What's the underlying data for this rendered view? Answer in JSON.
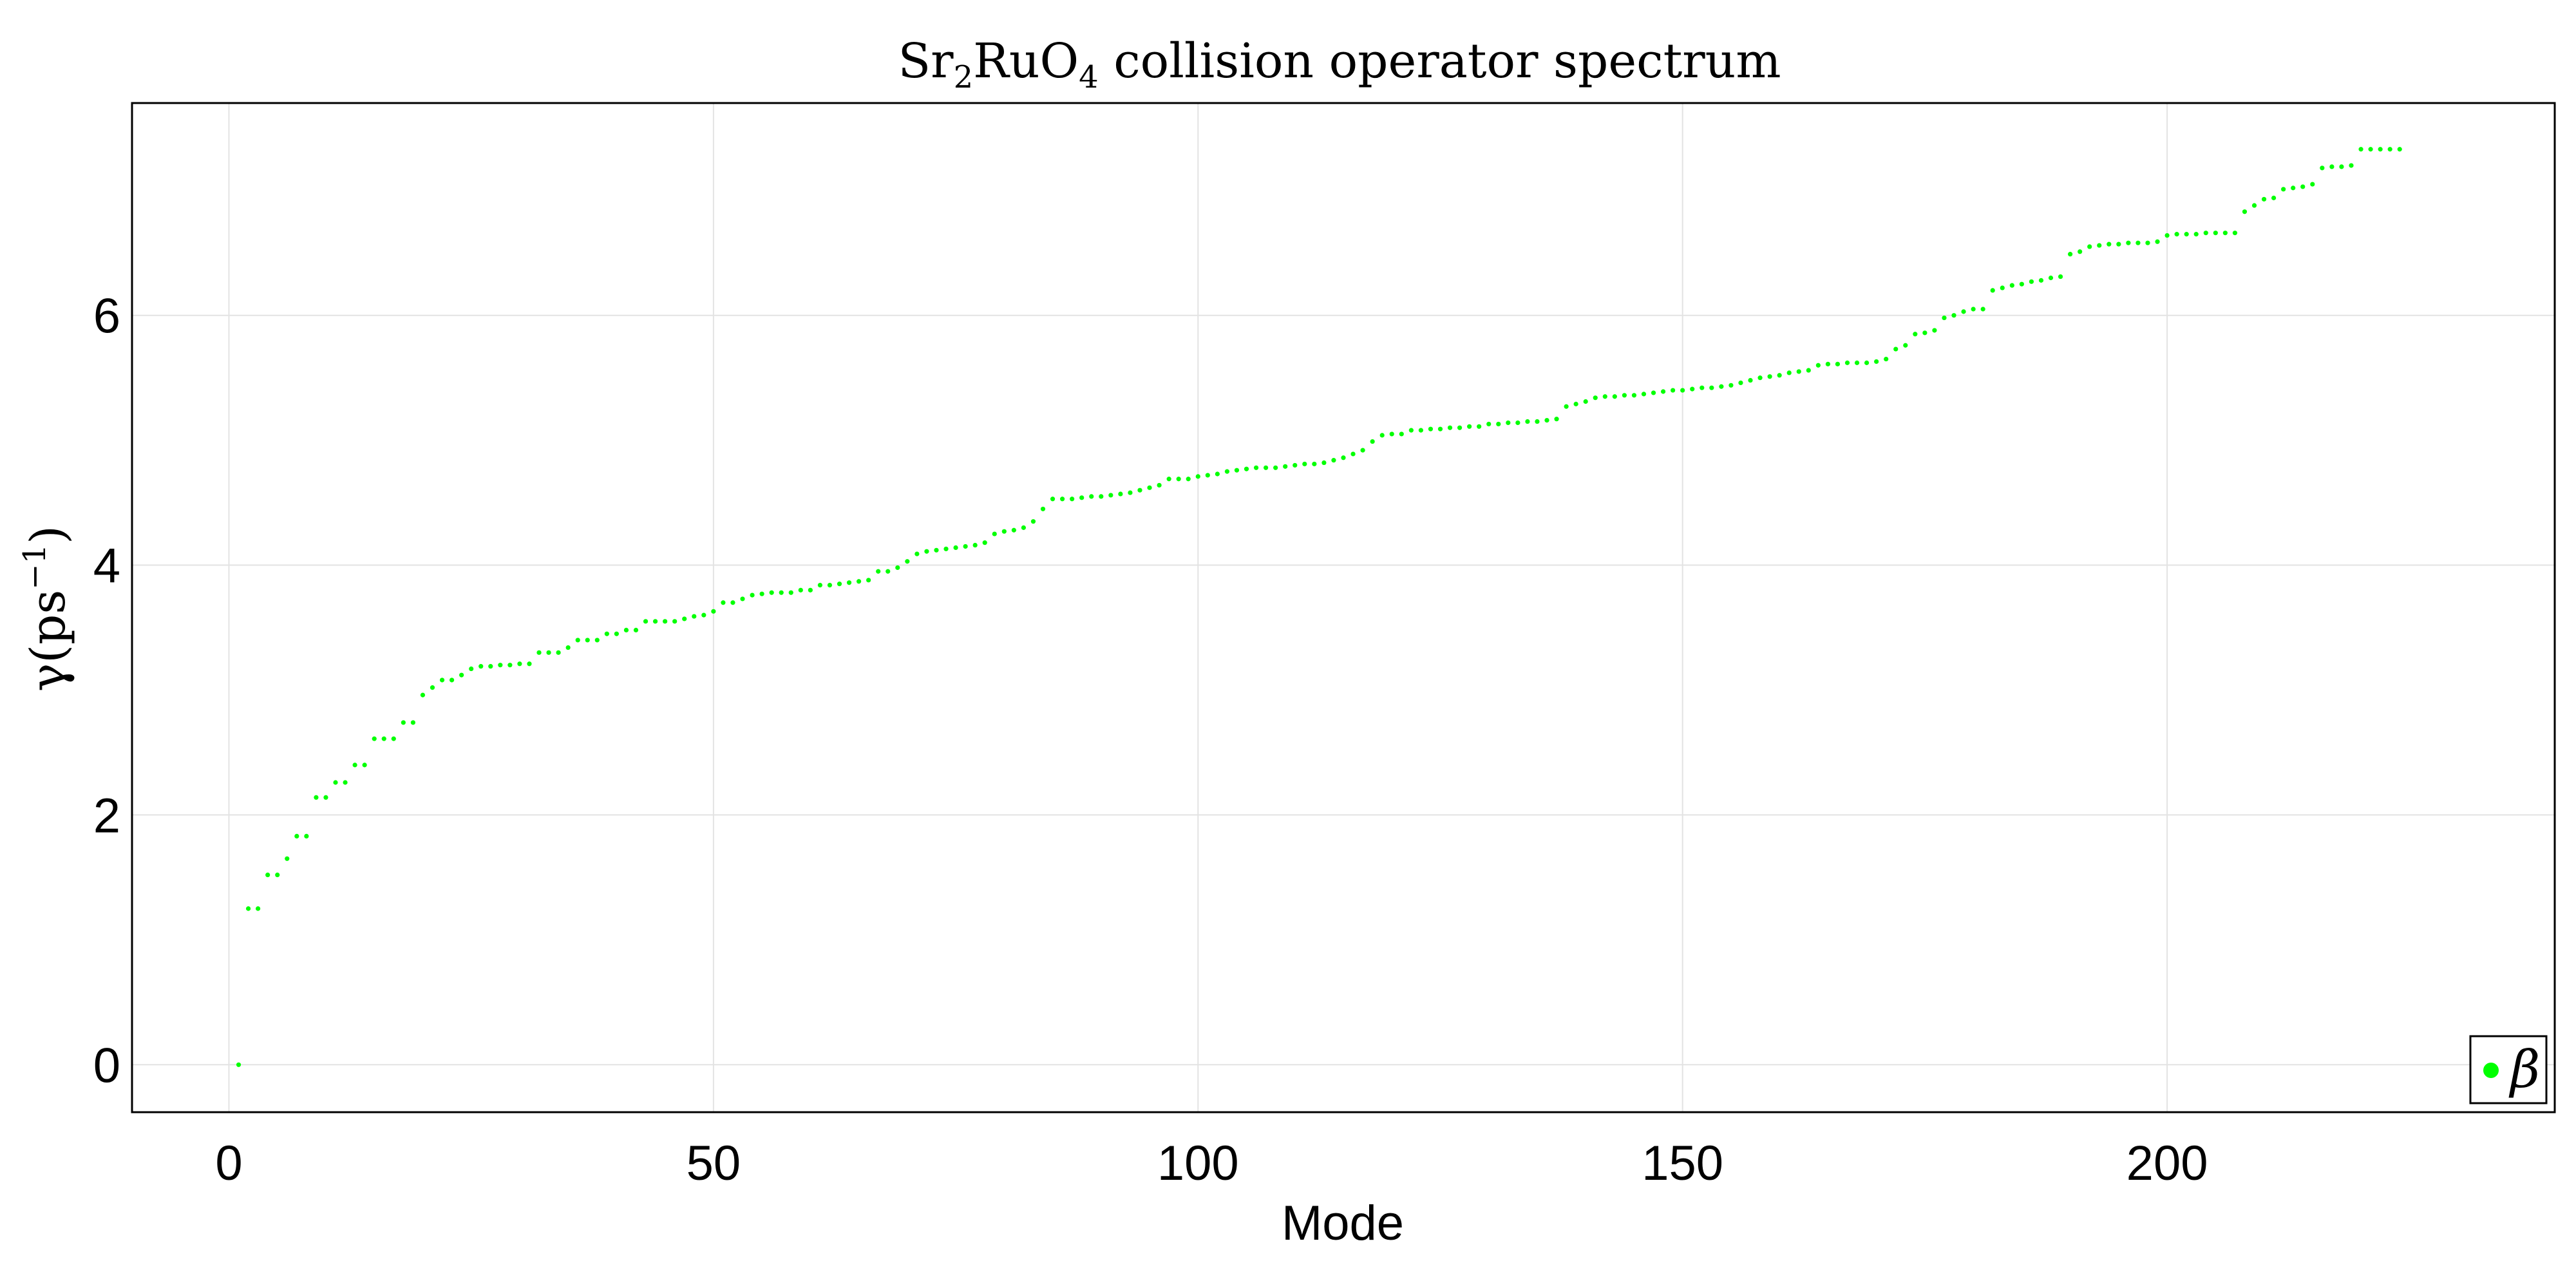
{
  "chart_data": {
    "type": "scatter",
    "title": {
      "base": "Sr",
      "sub1": "2",
      "mid": "RuO",
      "sub2": "4",
      "rest": " collision operator spectrum"
    },
    "xlabel": "Mode",
    "ylabel": {
      "base": "γ(ps",
      "sup": "−1",
      "close": ")"
    },
    "xlim": [
      -10,
      240
    ],
    "ylim": [
      -0.38,
      7.7
    ],
    "xticks": [
      0,
      50,
      100,
      150,
      200
    ],
    "yticks": [
      0,
      2,
      4,
      6
    ],
    "grid": true,
    "legend_position": "bottom-right",
    "series": [
      {
        "name": "β",
        "color": "#00ff00",
        "x_start": 1,
        "values": [
          0.0,
          1.25,
          1.25,
          1.52,
          1.52,
          1.65,
          1.83,
          1.83,
          2.14,
          2.14,
          2.26,
          2.26,
          2.4,
          2.4,
          2.61,
          2.61,
          2.61,
          2.74,
          2.74,
          2.96,
          3.02,
          3.08,
          3.08,
          3.12,
          3.17,
          3.19,
          3.19,
          3.2,
          3.2,
          3.21,
          3.21,
          3.3,
          3.3,
          3.3,
          3.34,
          3.4,
          3.4,
          3.4,
          3.45,
          3.45,
          3.48,
          3.48,
          3.55,
          3.55,
          3.55,
          3.55,
          3.57,
          3.59,
          3.6,
          3.63,
          3.7,
          3.7,
          3.73,
          3.76,
          3.77,
          3.78,
          3.78,
          3.78,
          3.8,
          3.8,
          3.84,
          3.84,
          3.85,
          3.86,
          3.87,
          3.88,
          3.95,
          3.95,
          3.98,
          4.03,
          4.09,
          4.11,
          4.12,
          4.13,
          4.14,
          4.15,
          4.16,
          4.18,
          4.25,
          4.27,
          4.28,
          4.3,
          4.35,
          4.45,
          4.53,
          4.53,
          4.53,
          4.54,
          4.55,
          4.55,
          4.56,
          4.57,
          4.58,
          4.6,
          4.62,
          4.64,
          4.69,
          4.69,
          4.69,
          4.71,
          4.72,
          4.73,
          4.75,
          4.76,
          4.77,
          4.78,
          4.78,
          4.78,
          4.79,
          4.8,
          4.81,
          4.81,
          4.82,
          4.84,
          4.86,
          4.89,
          4.92,
          4.99,
          5.04,
          5.05,
          5.05,
          5.08,
          5.08,
          5.09,
          5.09,
          5.1,
          5.1,
          5.11,
          5.11,
          5.13,
          5.13,
          5.14,
          5.14,
          5.15,
          5.15,
          5.16,
          5.17,
          5.27,
          5.29,
          5.31,
          5.34,
          5.35,
          5.35,
          5.36,
          5.36,
          5.37,
          5.38,
          5.39,
          5.4,
          5.4,
          5.41,
          5.42,
          5.42,
          5.43,
          5.44,
          5.46,
          5.48,
          5.5,
          5.51,
          5.52,
          5.54,
          5.55,
          5.56,
          5.6,
          5.61,
          5.61,
          5.62,
          5.62,
          5.62,
          5.63,
          5.65,
          5.73,
          5.76,
          5.85,
          5.86,
          5.88,
          5.98,
          6.0,
          6.03,
          6.05,
          6.05,
          6.2,
          6.22,
          6.24,
          6.25,
          6.27,
          6.28,
          6.3,
          6.31,
          6.49,
          6.51,
          6.55,
          6.56,
          6.57,
          6.57,
          6.58,
          6.58,
          6.58,
          6.59,
          6.64,
          6.65,
          6.65,
          6.65,
          6.66,
          6.66,
          6.66,
          6.66,
          6.83,
          6.88,
          6.93,
          6.94,
          7.01,
          7.02,
          7.03,
          7.05,
          7.18,
          7.19,
          7.19,
          7.2,
          7.33,
          7.33,
          7.33,
          7.33,
          7.33
        ]
      }
    ]
  }
}
